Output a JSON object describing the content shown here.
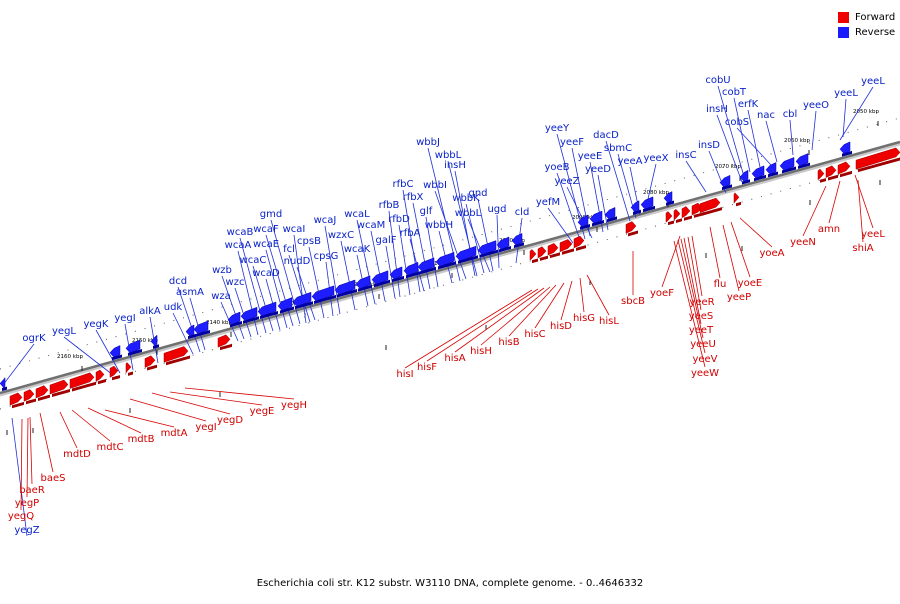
{
  "legend": {
    "forward_label": "Forward",
    "reverse_label": "Reverse",
    "forward_color": "#ee0000",
    "reverse_color": "#1a1aff"
  },
  "caption": "Escherichia coli str. K12 substr. W3110 DNA, complete genome. - 0..4646332",
  "ticks": [
    {
      "label": "2050 kbp"
    },
    {
      "label": "2060 kbp"
    },
    {
      "label": "2070 kbp"
    },
    {
      "label": "2080 kbp"
    },
    {
      "label": "2090 kbp"
    },
    {
      "label": "2100 kbp"
    },
    {
      "label": "2110 kbp"
    },
    {
      "label": "2120 kbp"
    },
    {
      "label": "2130 kbp"
    },
    {
      "label": "2140 kbp"
    },
    {
      "label": "2150 kbp"
    },
    {
      "label": "2160 kbp"
    }
  ],
  "reverse_genes": [
    "yeeL",
    "yeeL",
    "yeeO",
    "cbl",
    "nac",
    "erfK",
    "cobS",
    "cobT",
    "insH",
    "cobU",
    "insD",
    "insC",
    "yeeX",
    "yeeA",
    "sbmC",
    "dacD",
    "yeeD",
    "yeeE",
    "yeeF",
    "yeeY",
    "yeeZ",
    "yoeB",
    "yefM",
    "cld",
    "ugd",
    "wbbL",
    "gnd",
    "wbbK",
    "wbbL",
    "insH",
    "wbbI",
    "wbbJ",
    "wbbH",
    "glf",
    "rfbX",
    "rfbC",
    "rfbA",
    "rfbD",
    "rfbB",
    "galF",
    "wcaM",
    "wcaL",
    "wcaK",
    "wzxC",
    "wcaJ",
    "cpsG",
    "cpsB",
    "nudD",
    "fcl",
    "wcaI",
    "gmd",
    "wcaF",
    "wcaE",
    "wcaD",
    "wcaC",
    "wcaB",
    "wcaA",
    "wzc",
    "wzb",
    "wza",
    "asmA",
    "dcd",
    "udk",
    "alkA",
    "yegI",
    "yegK",
    "yegL",
    "ogrK",
    "yegZ"
  ],
  "forward_genes": [
    "yeeL",
    "shiA",
    "amn",
    "yeeN",
    "yoeA",
    "yoeE",
    "yeeP",
    "flu",
    "yoeF",
    "yeeR",
    "yeeS",
    "yeeT",
    "yeeU",
    "yeeV",
    "yeeW",
    "sbcB",
    "hisL",
    "hisG",
    "hisD",
    "hisC",
    "hisB",
    "hisH",
    "hisA",
    "hisF",
    "hisI",
    "yegH",
    "yegE",
    "yegD",
    "yegI",
    "mdtA",
    "mdtB",
    "mdtC",
    "mdtD",
    "baeS",
    "baeR",
    "yegP",
    "yegQ"
  ]
}
